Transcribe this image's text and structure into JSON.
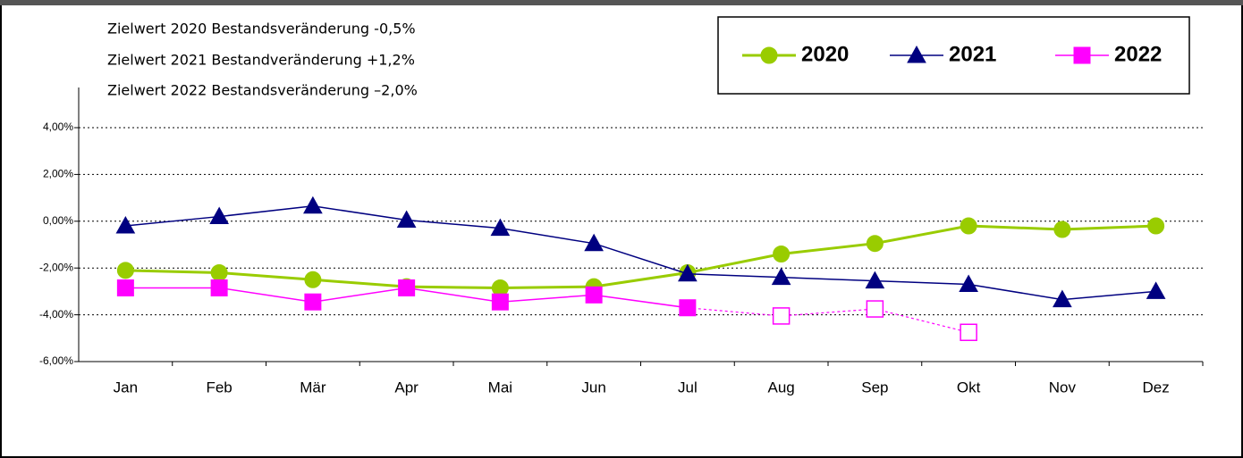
{
  "chart_data": {
    "type": "line",
    "annotations": [
      "Zielwert 2020 Bestandsveränderung  -0,5%",
      "Zielwert 2021 Bestandveränderung +1,2%",
      "Zielwert 2022 Bestandsveränderung –2,0%"
    ],
    "categories": [
      "Jan",
      "Feb",
      "Mär",
      "Apr",
      "Mai",
      "Jun",
      "Jul",
      "Aug",
      "Sep",
      "Okt",
      "Nov",
      "Dez"
    ],
    "series": [
      {
        "name": "2020",
        "color": "#99cc00",
        "marker": "circle",
        "values": [
          -2.1,
          -2.2,
          -2.5,
          -2.8,
          -2.85,
          -2.8,
          -2.2,
          -1.4,
          -0.95,
          -0.2,
          -0.35,
          -0.2
        ]
      },
      {
        "name": "2021",
        "color": "#000080",
        "marker": "triangle",
        "values": [
          -0.2,
          0.2,
          0.65,
          0.05,
          -0.3,
          -0.95,
          -2.25,
          -2.4,
          -2.55,
          -2.7,
          -3.35,
          -3.0
        ]
      },
      {
        "name": "2022",
        "color": "#ff00ff",
        "marker": "square",
        "dashed_from": 6,
        "values": [
          -2.85,
          -2.85,
          -3.45,
          -2.85,
          -3.45,
          -3.15,
          -3.7,
          -4.05,
          -3.75,
          -4.75,
          null,
          null
        ]
      }
    ],
    "ylim": [
      -6,
      4.6
    ],
    "yticks": [
      {
        "value": -6,
        "label": "-6,00%"
      },
      {
        "value": -4,
        "label": "-4,00%"
      },
      {
        "value": -2,
        "label": "-2,00%"
      },
      {
        "value": 0,
        "label": "0,00%"
      },
      {
        "value": 2,
        "label": "2,00%"
      },
      {
        "value": 4,
        "label": "4,00%"
      }
    ],
    "grid": true
  }
}
